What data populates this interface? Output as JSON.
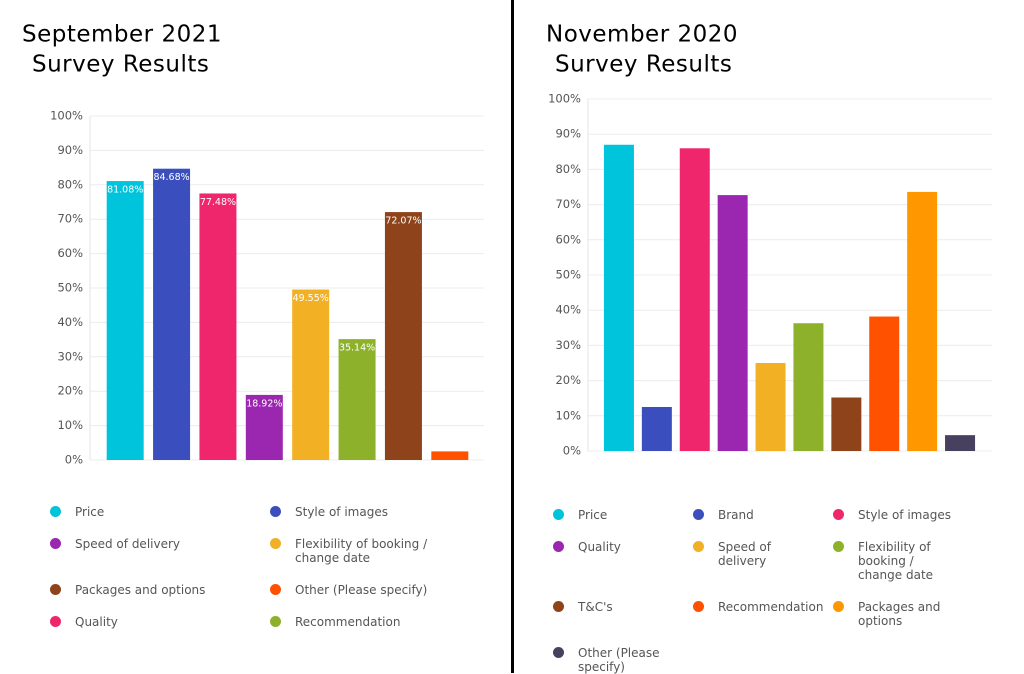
{
  "chart_data": [
    {
      "type": "bar",
      "title": [
        "September 2021",
        "Survey Results"
      ],
      "categories": [
        "Price",
        "Style of images",
        "Quality",
        "Speed of delivery",
        "Flexibility of booking / change date",
        "Recommendation",
        "Packages and options",
        "Other (Please specify)"
      ],
      "values": [
        81.08,
        84.68,
        77.48,
        18.92,
        49.55,
        35.14,
        72.07,
        2.5
      ],
      "value_labels": [
        "81.08%",
        "84.68%",
        "77.48%",
        "18.92%",
        "49.55%",
        "35.14%",
        "72.07%",
        null
      ],
      "colors": [
        "#00c4dc",
        "#3a4fbd",
        "#f0266c",
        "#9b27b0",
        "#f2b024",
        "#8db12a",
        "#8f431a",
        "#ff5100"
      ],
      "legend_order": [
        0,
        1,
        3,
        4,
        6,
        7,
        2,
        5
      ],
      "legend_columns": 2,
      "ylim": [
        0,
        100
      ],
      "yticks": [
        {
          "value": 0,
          "label": "0%"
        },
        {
          "value": 10,
          "label": "10%"
        },
        {
          "value": 20,
          "label": "20%"
        },
        {
          "value": 30,
          "label": "30%"
        },
        {
          "value": 40,
          "label": "40%"
        },
        {
          "value": 50,
          "label": "50%"
        },
        {
          "value": 60,
          "label": "60%"
        },
        {
          "value": 70,
          "label": "70%"
        },
        {
          "value": 80,
          "label": "80%"
        },
        {
          "value": 90,
          "label": "90%"
        },
        {
          "value": 100,
          "label": "100%"
        }
      ],
      "grid": true
    },
    {
      "type": "bar",
      "title": [
        "November 2020",
        "Survey Results"
      ],
      "categories": [
        "Price",
        "Brand",
        "Style of images",
        "Quality",
        "Speed of delivery",
        "Flexibility of booking / change date",
        "T&C's",
        "Recommendation",
        "Packages and options",
        "Other (Please specify)"
      ],
      "values": [
        87,
        12.5,
        86,
        72.7,
        25,
        36.3,
        15.2,
        38.2,
        73.6,
        4.5
      ],
      "colors": [
        "#00c4dc",
        "#3a4fbd",
        "#f0266c",
        "#9b27b0",
        "#f2b024",
        "#8db12a",
        "#8f431a",
        "#ff5100",
        "#ff9800",
        "#47405e"
      ],
      "legend_order": [
        0,
        1,
        2,
        3,
        4,
        5,
        6,
        7,
        8,
        9
      ],
      "legend_columns": 3,
      "ylim": [
        0,
        100
      ],
      "yticks": [
        {
          "value": 0,
          "label": "0%"
        },
        {
          "value": 10,
          "label": "10%"
        },
        {
          "value": 20,
          "label": "20%"
        },
        {
          "value": 30,
          "label": "30%"
        },
        {
          "value": 40,
          "label": "40%"
        },
        {
          "value": 50,
          "label": "50%"
        },
        {
          "value": 60,
          "label": "60%"
        },
        {
          "value": 70,
          "label": "70%"
        },
        {
          "value": 80,
          "label": "80%"
        },
        {
          "value": 90,
          "label": "90%"
        },
        {
          "value": 100,
          "label": "100%"
        }
      ],
      "grid": true
    }
  ]
}
